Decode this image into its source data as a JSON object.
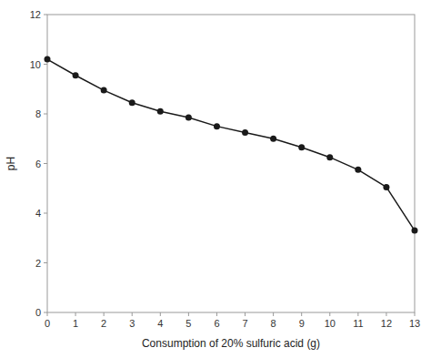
{
  "chart_data": {
    "type": "line",
    "x": [
      0,
      1,
      2,
      3,
      4,
      5,
      6,
      7,
      8,
      9,
      10,
      11,
      12,
      13
    ],
    "values": [
      10.2,
      9.55,
      8.95,
      8.45,
      8.1,
      7.85,
      7.5,
      7.25,
      7.0,
      6.65,
      6.25,
      5.75,
      5.05,
      3.3
    ],
    "xlabel": "Consumption of 20% sulfuric acid (g)",
    "ylabel": "pH",
    "xlim": [
      0,
      13
    ],
    "ylim": [
      0,
      12
    ],
    "xticks": [
      0,
      1,
      2,
      3,
      4,
      5,
      6,
      7,
      8,
      9,
      10,
      11,
      12,
      13
    ],
    "yticks": [
      0,
      2,
      4,
      6,
      8,
      10,
      12
    ],
    "color": "#1a1a1a",
    "marker": "circle",
    "grid": false
  }
}
